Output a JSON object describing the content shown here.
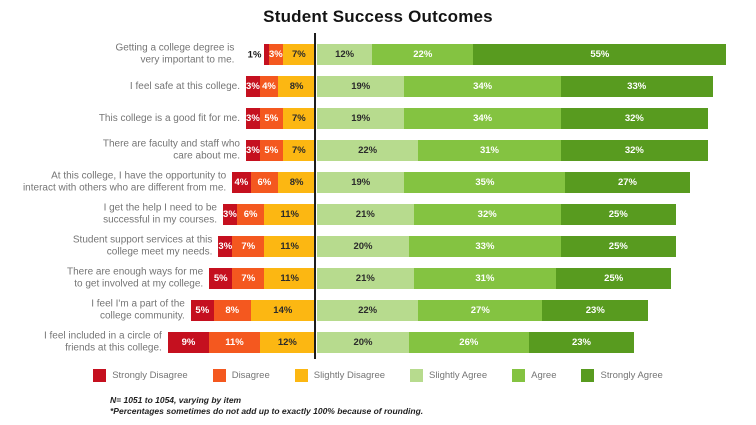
{
  "title": "Student Success Outcomes",
  "chart_data": {
    "type": "bar",
    "subtype": "diverging-stacked-horizontal",
    "unit": "%",
    "legend_position": "bottom",
    "axis": {
      "zero_line": true,
      "xlim_pct": [
        -35,
        92
      ],
      "grid": false
    },
    "categories": [
      "Getting a college degree is\nvery important to me.",
      "I feel safe at this college.",
      "This college is a good fit for me.",
      "There are faculty and staff who\ncare about me.",
      "At this college, I have the opportunity to\ninteract with others who are different from me.",
      "I get the help I need to be\nsuccessful in my courses.",
      "Student support services at this\ncollege meet my needs.",
      "There are enough ways for me\nto get involved at my college.",
      "I feel I'm a part of the\ncollege community.",
      "I feel included in a circle of\nfriends at this college."
    ],
    "series": [
      {
        "key": "strongly-disagree",
        "name": "Strongly Disagree",
        "side": "left",
        "color": "#c5101f",
        "text_color": "#ffffff",
        "values": [
          1,
          3,
          3,
          3,
          4,
          3,
          3,
          5,
          5,
          9
        ]
      },
      {
        "key": "disagree",
        "name": "Disagree",
        "side": "left",
        "color": "#f4581f",
        "text_color": "#ffffff",
        "values": [
          3,
          4,
          5,
          5,
          6,
          6,
          7,
          7,
          8,
          11
        ]
      },
      {
        "key": "slightly-disagree",
        "name": "Slightly Disagree",
        "side": "left",
        "color": "#fcb712",
        "text_color": "#2b2b2b",
        "values": [
          7,
          8,
          7,
          7,
          8,
          11,
          11,
          11,
          14,
          12
        ]
      },
      {
        "key": "slightly-agree",
        "name": "Slightly Agree",
        "side": "right",
        "color": "#b7db8e",
        "text_color": "#2b2b2b",
        "values": [
          12,
          19,
          19,
          22,
          19,
          21,
          20,
          21,
          22,
          20
        ]
      },
      {
        "key": "agree",
        "name": "Agree",
        "side": "right",
        "color": "#84c341",
        "text_color": "#ffffff",
        "values": [
          22,
          34,
          34,
          31,
          35,
          32,
          33,
          31,
          27,
          26
        ]
      },
      {
        "key": "strongly-agree",
        "name": "Strongly Agree",
        "side": "right",
        "color": "#589b1f",
        "text_color": "#ffffff",
        "values": [
          55,
          33,
          32,
          32,
          27,
          25,
          25,
          25,
          23,
          23
        ]
      }
    ]
  },
  "footnotes": [
    "N= 1051 to 1054, varying by item",
    "*Percentages sometimes do not add up to exactly 100% because of rounding."
  ]
}
